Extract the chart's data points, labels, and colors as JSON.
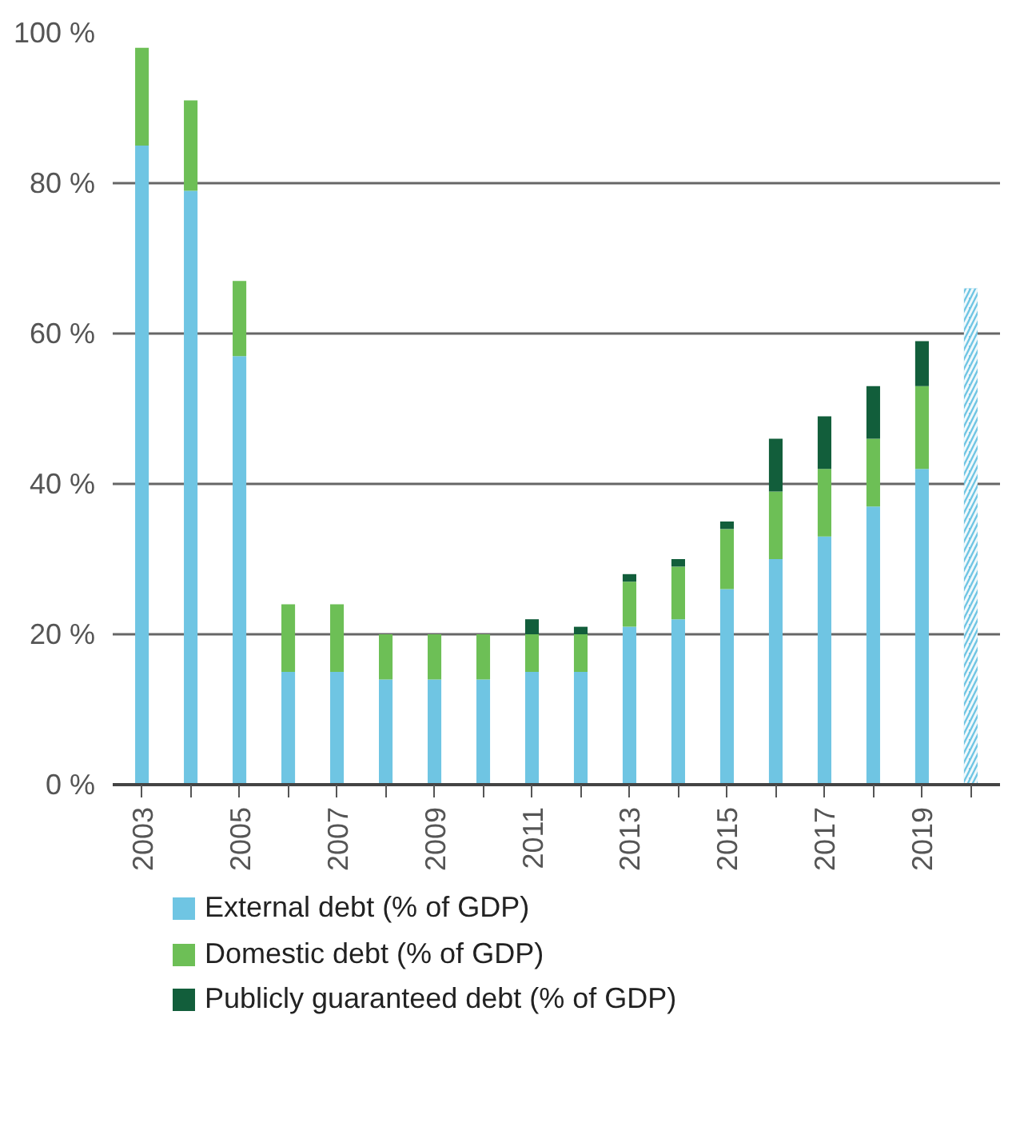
{
  "chart_data": {
    "type": "bar",
    "stacked": true,
    "categories": [
      "2003",
      null,
      "2005",
      null,
      "2007",
      null,
      "2009",
      null,
      "2011",
      null,
      "2013",
      null,
      "2015",
      null,
      "2017",
      null,
      "2019",
      null
    ],
    "series": [
      {
        "name": "External debt (% of GDP)",
        "color": "#6fc5e3",
        "values": [
          85,
          79,
          57,
          15,
          15,
          14,
          14,
          14,
          15,
          15,
          21,
          22,
          26,
          30,
          33,
          37,
          42,
          null
        ]
      },
      {
        "name": "Domestic debt (% of GDP)",
        "color": "#6dbf56",
        "values": [
          13,
          12,
          10,
          9,
          9,
          6,
          6,
          6,
          5,
          5,
          6,
          7,
          8,
          9,
          9,
          9,
          11,
          null
        ]
      },
      {
        "name": "Publicly guaranteed debt (% of GDP)",
        "color": "#125e3b",
        "values": [
          null,
          null,
          null,
          null,
          null,
          null,
          null,
          null,
          2,
          1,
          1,
          1,
          1,
          7,
          7,
          7,
          6,
          null
        ]
      },
      {
        "color": "#6fc5e3",
        "values": [
          null,
          null,
          null,
          null,
          null,
          null,
          null,
          null,
          null,
          null,
          null,
          null,
          null,
          null,
          null,
          null,
          null,
          66
        ]
      }
    ],
    "ylim": [
      0,
      100
    ],
    "yticks": [
      {
        "value": 0,
        "label": "0 %"
      },
      {
        "value": 20,
        "label": "20 %"
      },
      {
        "value": 40,
        "label": "40 %"
      },
      {
        "value": 60,
        "label": "60 %"
      },
      {
        "value": 80,
        "label": "80 %"
      },
      {
        "value": 100,
        "label": "100 %"
      }
    ],
    "grid": "y",
    "legend": "bottom"
  }
}
